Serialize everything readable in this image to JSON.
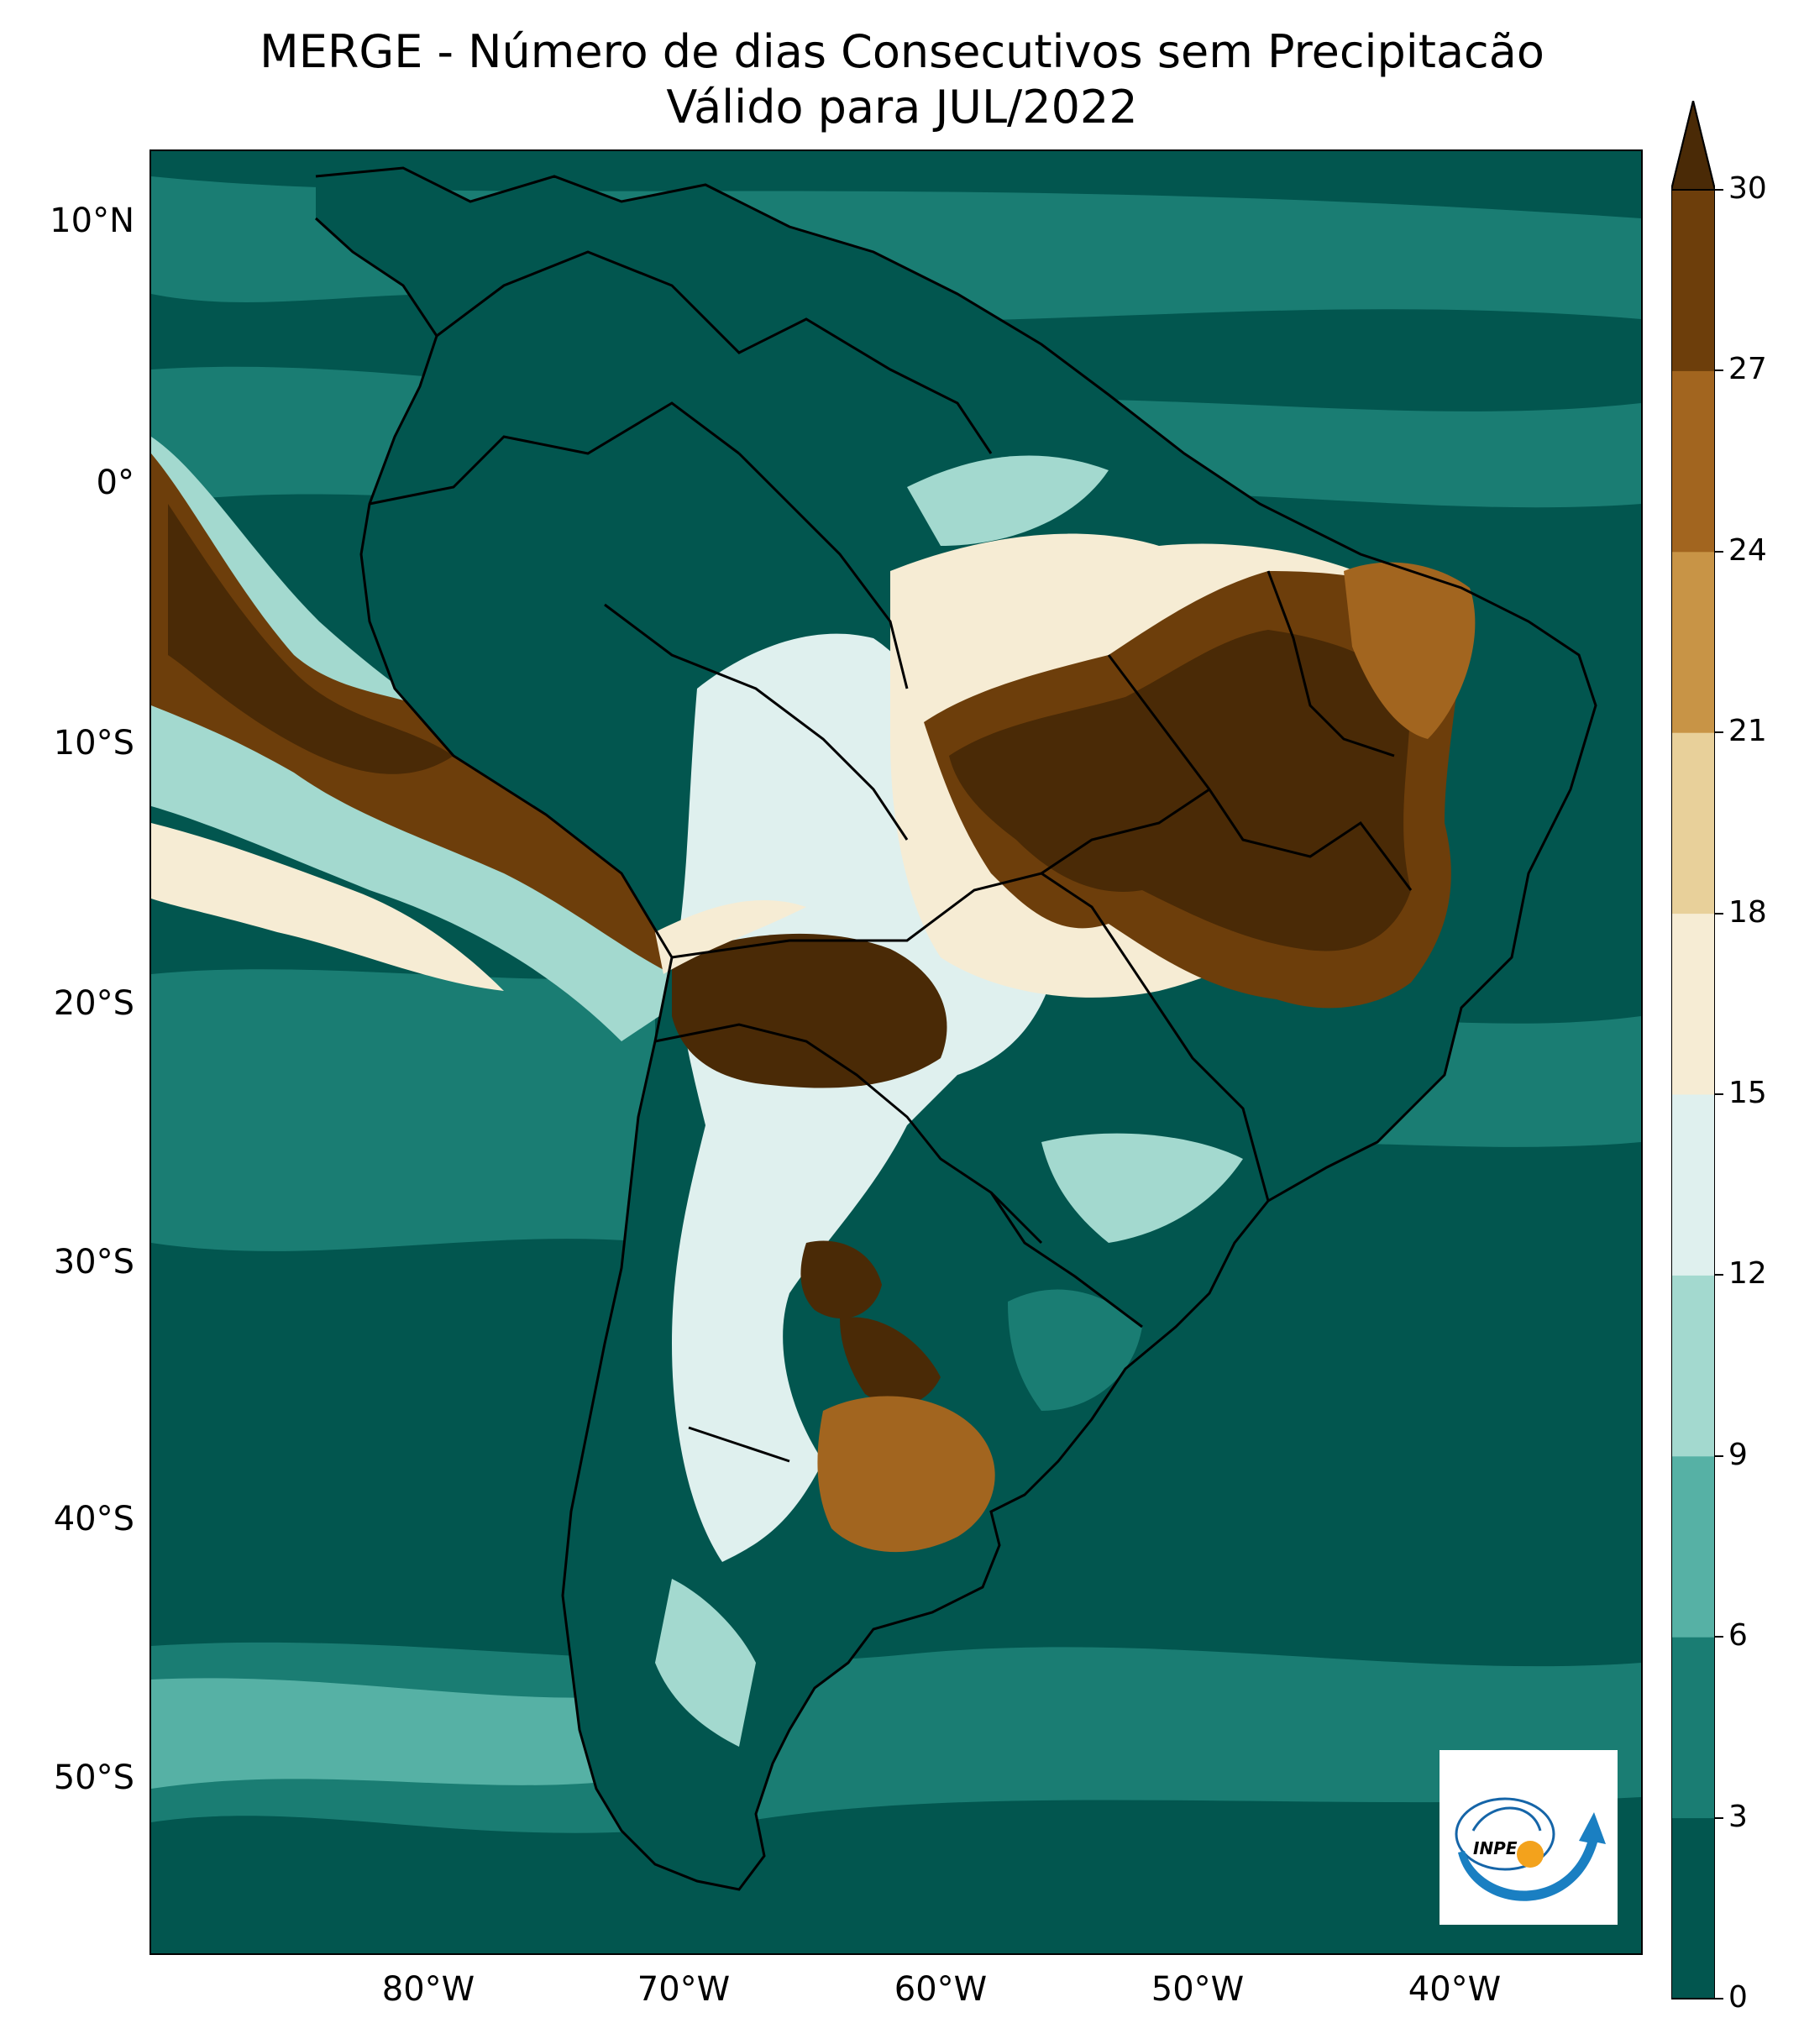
{
  "title": "MERGE - Número de dias Consecutivos sem Precipitacão",
  "subtitle": "Válido para JUL/2022",
  "lat_labels": [
    "10°N",
    "0°",
    "10°S",
    "20°S",
    "30°S",
    "40°S",
    "50°S"
  ],
  "lon_labels": [
    "80°W",
    "70°W",
    "60°W",
    "50°W",
    "40°W"
  ],
  "colorbar": {
    "ticks": [
      "0",
      "3",
      "6",
      "9",
      "12",
      "15",
      "18",
      "21",
      "24",
      "27",
      "30"
    ],
    "colors": [
      "#02564f",
      "#1a7d73",
      "#56b1a5",
      "#a3d9cf",
      "#dff0ee",
      "#f6ecd4",
      "#e8d09a",
      "#c89446",
      "#a2651f",
      "#6d3e0b",
      "#4a2a06"
    ],
    "extend": "max"
  },
  "logo": {
    "text": "INPE"
  }
}
